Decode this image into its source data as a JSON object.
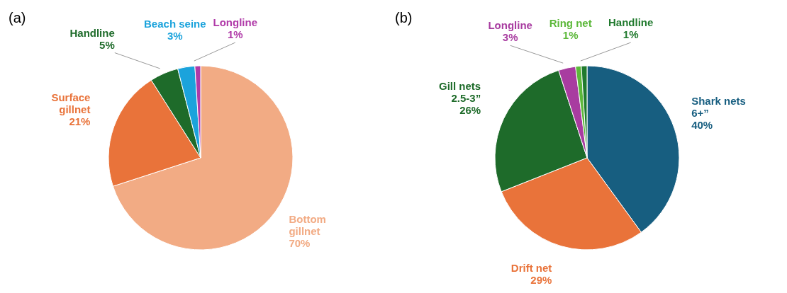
{
  "chart_data": [
    {
      "type": "pie",
      "title": "(a)",
      "categories": [
        "Bottom gillnet",
        "Surface gillnet",
        "Handline",
        "Beach seine",
        "Longline"
      ],
      "values": [
        70,
        21,
        5,
        3,
        1
      ],
      "colors": [
        "#f2ab84",
        "#e9733a",
        "#1e6b2a",
        "#1ba3dc",
        "#b03aa8"
      ],
      "value_labels": [
        "70%",
        "21%",
        "5%",
        "3%",
        "1%"
      ]
    },
    {
      "type": "pie",
      "title": "(b)",
      "categories": [
        "Shark nets 6+”",
        "Drift net",
        "Gill nets 2.5-3”",
        "Longline",
        "Ring net",
        "Handline"
      ],
      "values": [
        40,
        29,
        26,
        3,
        1,
        1
      ],
      "colors": [
        "#175e80",
        "#e9733a",
        "#1e6b2a",
        "#a83ca0",
        "#5cb83a",
        "#217a2e"
      ],
      "value_labels": [
        "40%",
        "29%",
        "26%",
        "3%",
        "1%",
        "1%"
      ]
    }
  ]
}
